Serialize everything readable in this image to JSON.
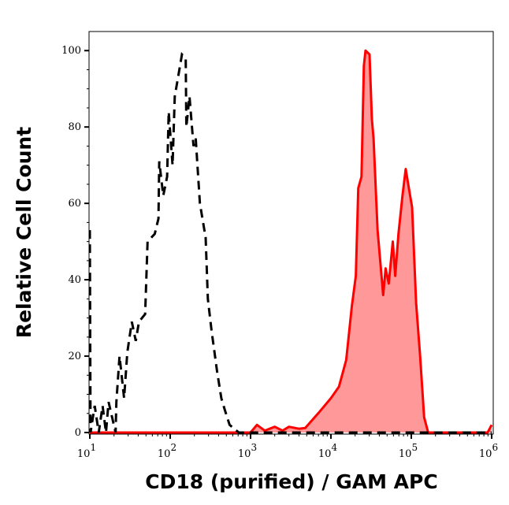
{
  "chart_data": {
    "type": "area",
    "title": "",
    "xlabel": "CD18 (purified) / GAM APC",
    "ylabel": "Relative Cell Count",
    "xscale": "log",
    "xlim": [
      10,
      1000000
    ],
    "ylim": [
      0,
      105
    ],
    "grid": false,
    "x_ticks": [
      {
        "value": 10,
        "base": "10",
        "exp": "1"
      },
      {
        "value": 100,
        "base": "10",
        "exp": "2"
      },
      {
        "value": 1000,
        "base": "10",
        "exp": "3"
      },
      {
        "value": 10000,
        "base": "10",
        "exp": "4"
      },
      {
        "value": 100000,
        "base": "10",
        "exp": "5"
      },
      {
        "value": 1000000,
        "base": "10",
        "exp": "6"
      }
    ],
    "y_ticks": [
      {
        "value": 0,
        "label": "0"
      },
      {
        "value": 20,
        "label": "20"
      },
      {
        "value": 40,
        "label": "40"
      },
      {
        "value": 60,
        "label": "60"
      },
      {
        "value": 80,
        "label": "80"
      },
      {
        "value": 100,
        "label": "100"
      }
    ],
    "series": [
      {
        "style": "dashed-line",
        "color": "#000000",
        "x": [
          10,
          10.2,
          11.5,
          12.9,
          14.4,
          15.9,
          17.1,
          20.9,
          21.4,
          23.4,
          26.7,
          29.3,
          33.3,
          37.3,
          40.9,
          48.8,
          52.3,
          64.2,
          71.4,
          73.1,
          82,
          91.6,
          95.9,
          107,
          114,
          135,
          140,
          156,
          159,
          174,
          195,
          208,
          234,
          276,
          294,
          326,
          383,
          433,
          477,
          549,
          714,
          1000000
        ],
        "y": [
          53,
          0,
          7,
          0,
          7,
          0,
          8,
          0,
          8,
          20,
          9,
          21,
          29,
          24,
          29,
          31,
          50,
          52,
          56,
          71,
          62,
          67,
          84,
          70,
          88,
          97,
          99,
          98,
          80,
          88,
          75,
          77,
          60,
          51,
          35,
          27,
          16,
          9,
          6,
          2,
          0,
          0
        ]
      },
      {
        "style": "filled",
        "color": "#ff0000",
        "fill": "#ff9999",
        "x": [
          10,
          1000,
          1200,
          1500,
          2000,
          2500,
          3000,
          4000,
          4786,
          6918,
          10000,
          12589,
          15488,
          18197,
          20417,
          21878,
          23988,
          25704,
          26915,
          30200,
          32359,
          33884,
          38019,
          44668,
          47863,
          52481,
          58884,
          63096,
          69183,
          77625,
          85114,
          93325,
          102329,
          114815,
          128825,
          144544,
          162181,
          316228,
          891251,
          1000000
        ],
        "y": [
          0,
          0,
          2,
          0.5,
          1.5,
          0.5,
          1.5,
          1,
          1.2,
          5,
          9,
          12,
          19,
          33,
          41,
          64,
          67,
          96,
          100,
          99,
          82,
          77,
          53,
          36,
          43,
          39,
          50,
          41,
          52,
          62,
          69,
          64,
          59,
          34,
          20,
          4,
          0,
          0,
          0,
          2
        ]
      }
    ]
  }
}
